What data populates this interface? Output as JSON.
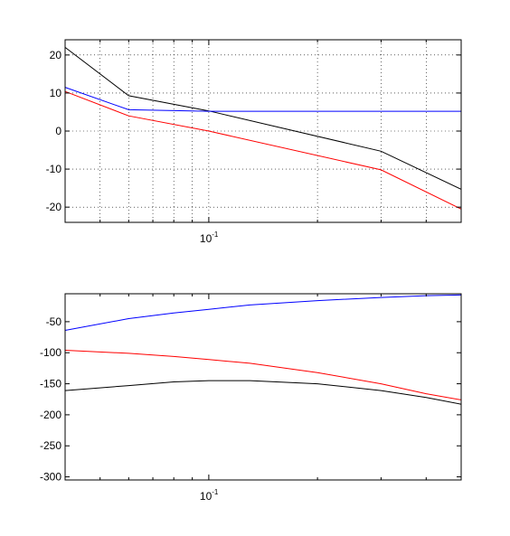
{
  "chart_data": [
    {
      "type": "line",
      "title": "",
      "xlabel": "",
      "ylabel": "",
      "x_scale": "log",
      "xlim": [
        0.04,
        0.5
      ],
      "ylim": [
        -24,
        24
      ],
      "grid": true,
      "x_tick_labels": [
        {
          "value": 0.1,
          "base": "10",
          "exponent": "-1"
        }
      ],
      "y_ticks": [
        20,
        10,
        0,
        -10,
        -20
      ],
      "y_tick_labels": [
        "20",
        "10",
        "0",
        "-10",
        "-20"
      ],
      "series": [
        {
          "color": "#000000",
          "x": [
            0.04,
            0.06,
            0.1,
            0.3,
            0.5
          ],
          "y": [
            22,
            9.3,
            5.3,
            -5.3,
            -15.3
          ]
        },
        {
          "color": "#0000ff",
          "x": [
            0.04,
            0.06,
            0.1,
            0.3,
            0.5
          ],
          "y": [
            11.5,
            5.6,
            5.2,
            5.2,
            5.2
          ]
        },
        {
          "color": "#ff0000",
          "x": [
            0.04,
            0.06,
            0.1,
            0.3,
            0.5
          ],
          "y": [
            10.4,
            4.0,
            0.0,
            -10.2,
            -20.5
          ]
        }
      ]
    },
    {
      "type": "line",
      "title": "",
      "xlabel": "",
      "ylabel": "",
      "x_scale": "log",
      "xlim": [
        0.04,
        0.5
      ],
      "ylim": [
        -305,
        -5
      ],
      "grid": false,
      "x_tick_labels": [
        {
          "value": 0.1,
          "base": "10",
          "exponent": "-1"
        }
      ],
      "y_ticks": [
        -50,
        -100,
        -150,
        -200,
        -250,
        -300
      ],
      "y_tick_labels": [
        "-50",
        "-100",
        "-150",
        "-200",
        "-250",
        "-300"
      ],
      "series": [
        {
          "color": "#0000ff",
          "x": [
            0.04,
            0.06,
            0.08,
            0.1,
            0.13,
            0.2,
            0.3,
            0.4,
            0.5
          ],
          "y": [
            -64,
            -45,
            -36,
            -30,
            -23,
            -16,
            -11,
            -8,
            -7
          ]
        },
        {
          "color": "#ff0000",
          "x": [
            0.04,
            0.06,
            0.08,
            0.1,
            0.13,
            0.2,
            0.3,
            0.4,
            0.5
          ],
          "y": [
            -96,
            -101,
            -106,
            -111,
            -117,
            -132,
            -150,
            -166,
            -176
          ]
        },
        {
          "color": "#000000",
          "x": [
            0.04,
            0.06,
            0.08,
            0.1,
            0.13,
            0.2,
            0.3,
            0.4,
            0.5
          ],
          "y": [
            -161,
            -153,
            -147,
            -145,
            -145,
            -150,
            -161,
            -172,
            -183
          ]
        }
      ]
    }
  ]
}
